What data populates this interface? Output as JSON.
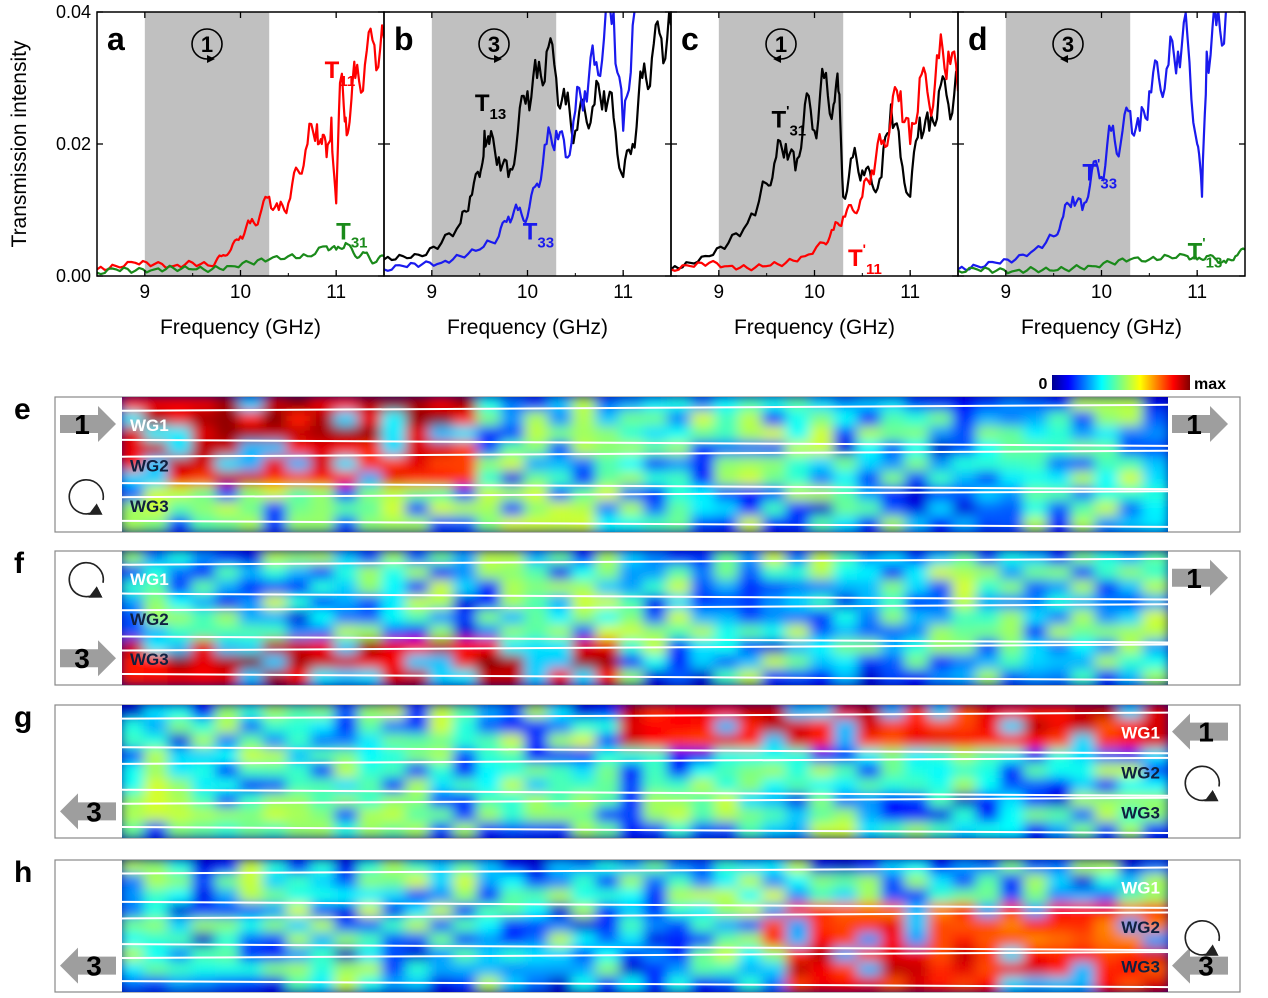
{
  "figure": {
    "spectra_panels": [
      {
        "letter": "a",
        "port": "1",
        "rotation": "cw",
        "shade": [
          9.0,
          10.3
        ],
        "labels": [
          {
            "text": "T",
            "sup": "",
            "sub": "11",
            "color": "#ff0000",
            "x": 10.88,
            "y": 0.03
          },
          {
            "text": "T",
            "sup": "",
            "sub": "31",
            "color": "#1a8a1a",
            "x": 11.0,
            "y": 0.0055
          }
        ],
        "show_ylabel": true
      },
      {
        "letter": "b",
        "port": "3",
        "rotation": "cw",
        "shade": [
          9.0,
          10.3
        ],
        "labels": [
          {
            "text": "T",
            "sup": "",
            "sub": "13",
            "color": "#000000",
            "x": 9.45,
            "y": 0.025
          },
          {
            "text": "T",
            "sup": "",
            "sub": "33",
            "color": "#1a1aee",
            "x": 9.95,
            "y": 0.0055
          }
        ],
        "show_ylabel": false
      },
      {
        "letter": "c",
        "port": "1",
        "rotation": "ccw",
        "shade": [
          9.0,
          10.3
        ],
        "labels": [
          {
            "text": "T",
            "sup": "'",
            "sub": "31",
            "color": "#000000",
            "x": 9.55,
            "y": 0.0225
          },
          {
            "text": "T",
            "sup": "'",
            "sub": "11",
            "color": "#ff0000",
            "x": 10.35,
            "y": 0.0015
          }
        ],
        "show_ylabel": false
      },
      {
        "letter": "d",
        "port": "3",
        "rotation": "ccw",
        "shade": [
          9.0,
          10.3
        ],
        "labels": [
          {
            "text": "T",
            "sup": "'",
            "sub": "33",
            "color": "#1a1aee",
            "x": 9.8,
            "y": 0.0145
          },
          {
            "text": "T",
            "sup": "'",
            "sub": "13",
            "color": "#1a8a1a",
            "x": 10.9,
            "y": 0.0025
          }
        ],
        "show_ylabel": false
      }
    ],
    "field_panels": [
      {
        "letter": "e",
        "in_port": "1",
        "in_side": "left",
        "in_row": 1,
        "out_port": "1",
        "out_side": "right",
        "out_row": 1,
        "rotation": "cw",
        "rot_side": "left",
        "wg_side": "left"
      },
      {
        "letter": "f",
        "in_port": "3",
        "in_side": "left",
        "in_row": 3,
        "out_port": "1",
        "out_side": "right",
        "out_row": 1,
        "rotation": "cw",
        "rot_side": "left",
        "wg_side": "left"
      },
      {
        "letter": "g",
        "in_port": "1",
        "in_side": "right",
        "in_row": 1,
        "out_port": "3",
        "out_side": "left",
        "out_row": 3,
        "rotation": "cw",
        "rot_side": "right",
        "wg_side": "right"
      },
      {
        "letter": "h",
        "in_port": "3",
        "in_side": "right",
        "in_row": 3,
        "out_port": "3",
        "out_side": "left",
        "out_row": 3,
        "rotation": "cw",
        "rot_side": "right",
        "wg_side": "right"
      }
    ],
    "waveguide_labels": [
      "WG1",
      "WG2",
      "WG3"
    ],
    "colorbar": {
      "min_label": "0",
      "max_label": "max"
    }
  },
  "chart_data": {
    "type": "line",
    "xlabel": "Frequency (GHz)",
    "ylabel": "Transmission intensity",
    "xlim": [
      8.5,
      11.5
    ],
    "ylim": [
      0.0,
      0.04
    ],
    "xticks": [
      "9",
      "10",
      "11"
    ],
    "yticks": [
      "0.00",
      "0.02",
      "0.04"
    ],
    "colors": {
      "red": "#ff0000",
      "green": "#1a8a1a",
      "black": "#000000",
      "blue": "#1a1aee",
      "shade": "#c0c0c0"
    },
    "panels": [
      {
        "panel": "a",
        "series": [
          {
            "name": "T11",
            "color": "#ff0000",
            "x": [
              8.5,
              8.7,
              8.9,
              9.1,
              9.3,
              9.5,
              9.7,
              9.8,
              9.9,
              10.0,
              10.1,
              10.2,
              10.3,
              10.4,
              10.5,
              10.6,
              10.7,
              10.8,
              10.85,
              10.9,
              10.95,
              11.0,
              11.05,
              11.1,
              11.15,
              11.2,
              11.3,
              11.4,
              11.5
            ],
            "y": [
              0.001,
              0.0015,
              0.002,
              0.0018,
              0.0015,
              0.002,
              0.0015,
              0.003,
              0.004,
              0.006,
              0.008,
              0.009,
              0.012,
              0.01,
              0.011,
              0.016,
              0.02,
              0.023,
              0.02,
              0.018,
              0.024,
              0.011,
              0.03,
              0.024,
              0.025,
              0.03,
              0.032,
              0.035,
              0.036
            ]
          },
          {
            "name": "T31",
            "color": "#1a8a1a",
            "x": [
              8.5,
              8.7,
              8.9,
              9.1,
              9.3,
              9.5,
              9.7,
              9.9,
              10.1,
              10.3,
              10.5,
              10.7,
              10.9,
              11.0,
              11.1,
              11.2,
              11.3,
              11.4,
              11.5
            ],
            "y": [
              0.0005,
              0.001,
              0.0008,
              0.001,
              0.0012,
              0.001,
              0.001,
              0.0015,
              0.002,
              0.0025,
              0.003,
              0.003,
              0.0045,
              0.004,
              0.005,
              0.003,
              0.0035,
              0.002,
              0.003
            ]
          }
        ]
      },
      {
        "panel": "b",
        "series": [
          {
            "name": "T13",
            "color": "#000000",
            "x": [
              8.5,
              8.7,
              8.9,
              9.1,
              9.3,
              9.4,
              9.5,
              9.55,
              9.6,
              9.7,
              9.8,
              9.9,
              10.0,
              10.1,
              10.2,
              10.3,
              10.4,
              10.5,
              10.6,
              10.7,
              10.8,
              10.9,
              11.0,
              11.1,
              11.2,
              11.3,
              11.4,
              11.5
            ],
            "y": [
              0.0025,
              0.003,
              0.003,
              0.005,
              0.008,
              0.012,
              0.015,
              0.022,
              0.02,
              0.018,
              0.015,
              0.022,
              0.028,
              0.03,
              0.034,
              0.03,
              0.026,
              0.022,
              0.025,
              0.026,
              0.028,
              0.024,
              0.015,
              0.02,
              0.03,
              0.033,
              0.036,
              0.038
            ]
          },
          {
            "name": "T33",
            "color": "#1a1aee",
            "x": [
              8.5,
              8.7,
              8.9,
              9.1,
              9.3,
              9.5,
              9.7,
              9.8,
              9.9,
              10.0,
              10.1,
              10.2,
              10.3,
              10.4,
              10.5,
              10.6,
              10.7,
              10.8,
              10.9,
              11.0,
              11.1,
              11.2
            ],
            "y": [
              0.001,
              0.0015,
              0.0018,
              0.002,
              0.003,
              0.004,
              0.006,
              0.009,
              0.01,
              0.009,
              0.014,
              0.02,
              0.022,
              0.018,
              0.025,
              0.028,
              0.032,
              0.036,
              0.04,
              0.022,
              0.038,
              0.04
            ]
          }
        ]
      },
      {
        "panel": "c",
        "series": [
          {
            "name": "T'31",
            "color": "#000000",
            "x": [
              8.5,
              8.7,
              8.9,
              9.1,
              9.3,
              9.5,
              9.6,
              9.7,
              9.8,
              9.9,
              10.0,
              10.1,
              10.2,
              10.25,
              10.3,
              10.4,
              10.5,
              10.6,
              10.7,
              10.8,
              10.9,
              11.0,
              11.1,
              11.2,
              11.3,
              11.4,
              11.5
            ],
            "y": [
              0.001,
              0.002,
              0.003,
              0.005,
              0.008,
              0.014,
              0.018,
              0.02,
              0.016,
              0.026,
              0.022,
              0.03,
              0.026,
              0.028,
              0.012,
              0.018,
              0.016,
              0.014,
              0.015,
              0.026,
              0.018,
              0.012,
              0.024,
              0.022,
              0.028,
              0.026,
              0.03
            ]
          },
          {
            "name": "T'11",
            "color": "#ff0000",
            "x": [
              8.5,
              8.7,
              8.9,
              9.1,
              9.3,
              9.5,
              9.7,
              9.9,
              10.1,
              10.2,
              10.3,
              10.4,
              10.5,
              10.6,
              10.7,
              10.8,
              10.9,
              11.0,
              11.1,
              11.2,
              11.3,
              11.4,
              11.5
            ],
            "y": [
              0.001,
              0.0015,
              0.002,
              0.0015,
              0.0012,
              0.0015,
              0.002,
              0.003,
              0.005,
              0.007,
              0.009,
              0.01,
              0.012,
              0.016,
              0.02,
              0.024,
              0.028,
              0.02,
              0.03,
              0.026,
              0.033,
              0.034,
              0.028
            ]
          }
        ]
      },
      {
        "panel": "d",
        "series": [
          {
            "name": "T'33",
            "color": "#1a1aee",
            "x": [
              8.5,
              8.7,
              8.9,
              9.1,
              9.3,
              9.5,
              9.6,
              9.7,
              9.8,
              9.9,
              10.0,
              10.1,
              10.2,
              10.3,
              10.4,
              10.5,
              10.6,
              10.7,
              10.8,
              10.9,
              11.0,
              11.05,
              11.1,
              11.2,
              11.3
            ],
            "y": [
              0.001,
              0.0015,
              0.002,
              0.0025,
              0.004,
              0.006,
              0.009,
              0.012,
              0.01,
              0.016,
              0.015,
              0.022,
              0.02,
              0.025,
              0.022,
              0.028,
              0.03,
              0.032,
              0.034,
              0.036,
              0.02,
              0.012,
              0.034,
              0.038,
              0.04
            ]
          },
          {
            "name": "T'13",
            "color": "#1a8a1a",
            "x": [
              8.5,
              8.7,
              8.9,
              9.1,
              9.3,
              9.5,
              9.7,
              9.9,
              10.1,
              10.3,
              10.5,
              10.7,
              10.9,
              11.0,
              11.1,
              11.2,
              11.3,
              11.4,
              11.5
            ],
            "y": [
              0.0008,
              0.001,
              0.0008,
              0.0008,
              0.001,
              0.0008,
              0.0012,
              0.0015,
              0.002,
              0.0025,
              0.0025,
              0.003,
              0.003,
              0.0025,
              0.003,
              0.0025,
              0.002,
              0.003,
              0.004
            ]
          }
        ]
      }
    ]
  }
}
